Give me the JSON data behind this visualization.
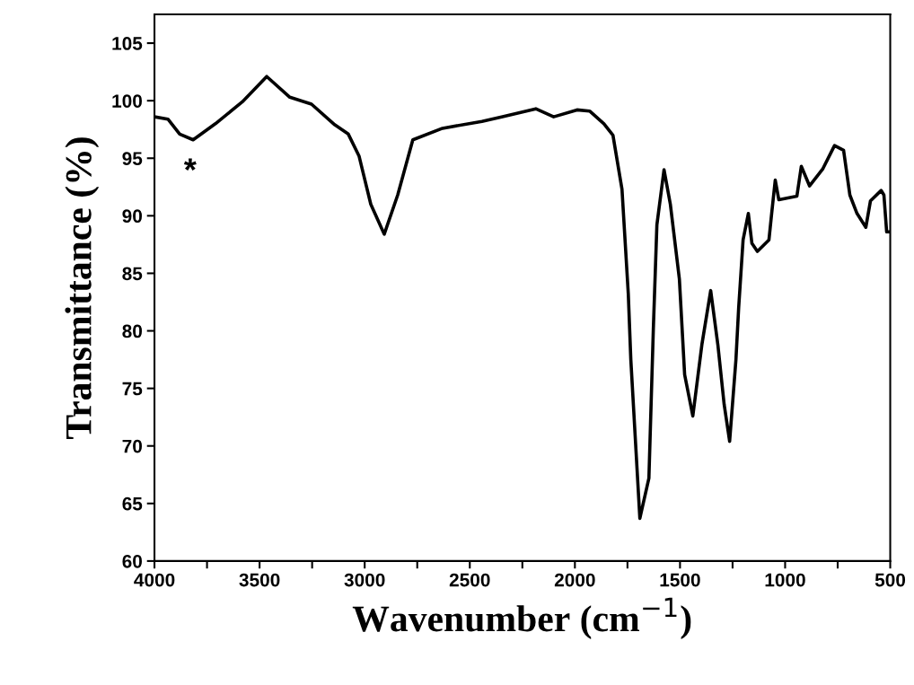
{
  "chart_data": {
    "type": "line",
    "xlabel": "Wavenumber (cm$^{−1}$)",
    "ylabel": "Transmittance (%)",
    "x": [
      4000,
      3936,
      3880,
      3816,
      3710,
      3582,
      3466,
      3356,
      3253,
      3142,
      3078,
      3027,
      2971,
      2907,
      2843,
      2771,
      2630,
      2442,
      2344,
      2186,
      2101,
      1990,
      1930,
      1862,
      1819,
      1776,
      1746,
      1734,
      1691,
      1648,
      1627,
      1610,
      1576,
      1546,
      1503,
      1478,
      1439,
      1396,
      1354,
      1320,
      1290,
      1264,
      1234,
      1221,
      1200,
      1175,
      1158,
      1132,
      1077,
      1064,
      1047,
      1030,
      944,
      923,
      884,
      820,
      765,
      722,
      692,
      658,
      616,
      594,
      543,
      530,
      517,
      500
    ],
    "series": [
      {
        "color": "#000000",
        "values": [
          98.6,
          98.4,
          97.1,
          96.6,
          98.0,
          99.9,
          102.1,
          100.3,
          99.7,
          97.9,
          97.1,
          95.2,
          91.0,
          88.4,
          91.8,
          96.6,
          97.6,
          98.2,
          98.6,
          99.3,
          98.6,
          99.2,
          99.1,
          98.0,
          97.0,
          92.3,
          83.2,
          77.5,
          63.7,
          67.2,
          80.1,
          89.2,
          94.0,
          91.0,
          84.5,
          76.2,
          72.6,
          78.8,
          83.5,
          78.8,
          73.6,
          70.4,
          77.5,
          82.0,
          87.9,
          90.2,
          87.6,
          86.9,
          87.9,
          90.2,
          93.1,
          91.4,
          91.7,
          94.3,
          92.6,
          94.1,
          96.1,
          95.7,
          91.8,
          90.2,
          89.0,
          91.3,
          92.2,
          91.8,
          88.6,
          88.6
        ]
      }
    ],
    "xlim": [
      4000,
      500
    ],
    "xticks": [
      4000,
      {
        "value": 3750,
        "label": null
      },
      3500,
      {
        "value": 3250,
        "label": null
      },
      3000,
      {
        "value": 2750,
        "label": null
      },
      2500,
      {
        "value": 2250,
        "label": null
      },
      2000,
      {
        "value": 1750,
        "label": null
      },
      1500,
      {
        "value": 1250,
        "label": null
      },
      1000,
      {
        "value": 750,
        "label": null
      },
      500
    ],
    "ylim": [
      60,
      107.5
    ],
    "yticks": [
      60,
      65,
      70,
      75,
      80,
      85,
      90,
      95,
      100,
      105
    ],
    "annotations": [
      {
        "text": "*",
        "x": 3830,
        "y": 96.6
      }
    ],
    "grid": false,
    "marker": "none",
    "line_style": "solid"
  }
}
